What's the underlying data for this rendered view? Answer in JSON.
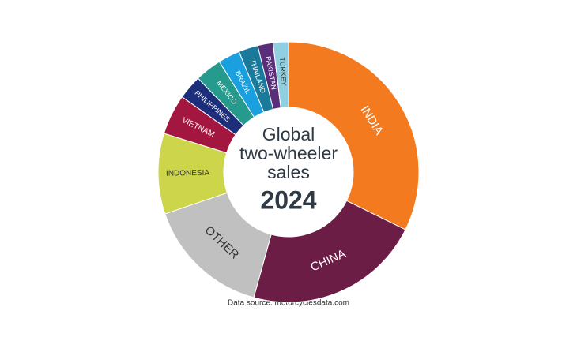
{
  "chart_data": {
    "type": "donut",
    "title_lines": [
      "Global",
      "two-wheeler",
      "sales"
    ],
    "subtitle": "2024",
    "source": "Data source: motorcyclesdata.com",
    "categories": [
      "INDIA",
      "CHINA",
      "OTHER",
      "INDONESIA",
      "VIETNAM",
      "PHILIPPINES",
      "MEXICO",
      "BRAZIL",
      "THAILAND",
      "PAKISTAN",
      "TURKEY"
    ],
    "values": [
      32.3,
      22,
      15.5,
      10,
      5,
      3,
      3.3,
      2.7,
      2.4,
      1.9,
      1.9
    ],
    "colors": [
      "#f47a20",
      "#6b1d45",
      "#c0c0c0",
      "#cdd64a",
      "#a3163f",
      "#1d2f7a",
      "#269a8c",
      "#1aa0de",
      "#1a7a9c",
      "#5a2d7a",
      "#8fcfe0"
    ]
  }
}
